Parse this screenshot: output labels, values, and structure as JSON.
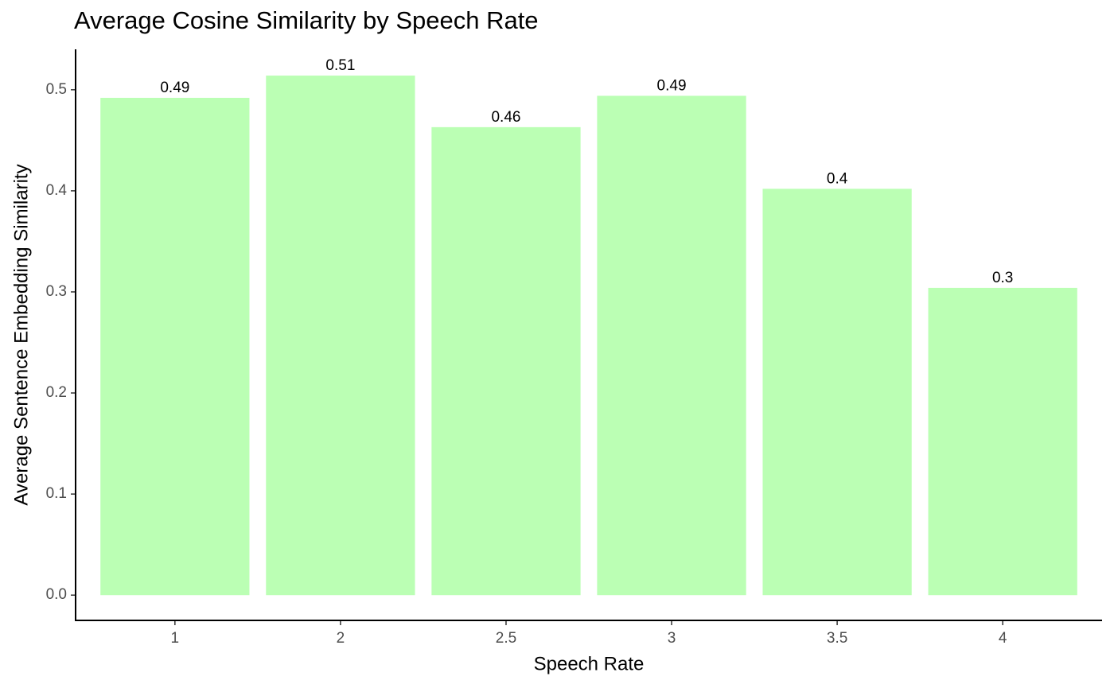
{
  "chart_data": {
    "type": "bar",
    "title": "Average Cosine Similarity by Speech Rate",
    "x_label": "Speech Rate",
    "y_label": "Average Sentence Embedding Similarity",
    "categories": [
      "1",
      "2",
      "2.5",
      "3",
      "3.5",
      "4"
    ],
    "values": [
      0.492,
      0.514,
      0.463,
      0.494,
      0.402,
      0.304
    ],
    "value_labels": [
      "0.49",
      "0.51",
      "0.46",
      "0.49",
      "0.4",
      "0.3"
    ],
    "color": "#bbffb4",
    "ylim": [
      -0.025,
      0.54
    ],
    "yticks": [
      {
        "value": 0,
        "label": "0.0"
      },
      0.1,
      0.2,
      0.3,
      0.4,
      0.5
    ],
    "grid": false
  }
}
